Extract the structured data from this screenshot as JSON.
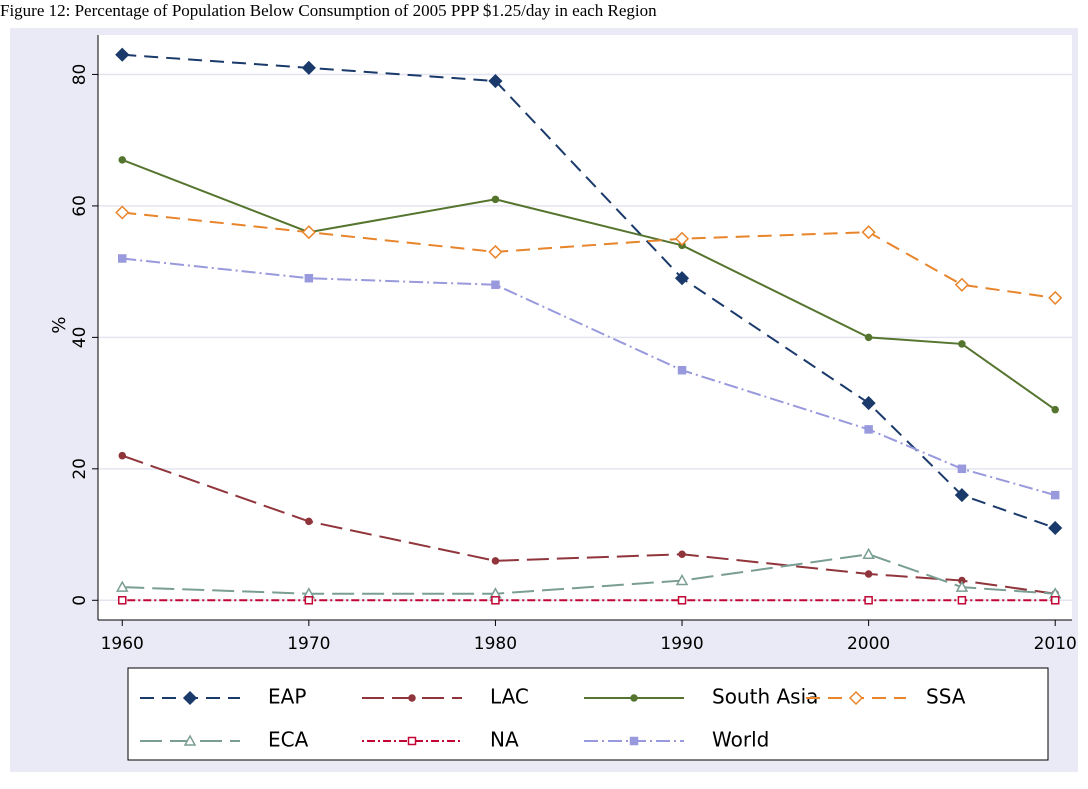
{
  "chart_data": {
    "type": "line",
    "title": "Figure 12: Percentage of Population Below  Consumption of 2005 PPP $1.25/day in each Region",
    "ylabel": "%",
    "x": [
      1960,
      1970,
      1980,
      1990,
      2000,
      2005,
      2010
    ],
    "xlim": [
      1958.7,
      2010.9
    ],
    "xticks": [
      1960,
      1970,
      1980,
      1990,
      2000,
      2010
    ],
    "ylim": [
      -3,
      86
    ],
    "yticks": [
      0,
      20,
      40,
      60,
      80
    ],
    "grid": true,
    "legend": "bottom",
    "series": [
      {
        "name": "EAP",
        "color": "#1a3a6b",
        "line_style": "dash",
        "marker": "diamond",
        "values": [
          83,
          81,
          79,
          49,
          30,
          16,
          11
        ]
      },
      {
        "name": "LAC",
        "color": "#90353b",
        "line_style": "longdash",
        "marker": "dot",
        "values": [
          22,
          12,
          6,
          7,
          4,
          3,
          1
        ]
      },
      {
        "name": "South Asia",
        "color": "#55752f",
        "line_style": "solid",
        "marker": "dot",
        "values": [
          67,
          56,
          61,
          54,
          40,
          39,
          29
        ]
      },
      {
        "name": "SSA",
        "color": "#e8842a",
        "line_style": "dash",
        "marker": "hollow-diamond",
        "values": [
          59,
          56,
          53,
          55,
          56,
          48,
          46
        ]
      },
      {
        "name": "ECA",
        "color": "#7a9e93",
        "line_style": "longdash",
        "marker": "hollow-triangle",
        "values": [
          2,
          1,
          1,
          3,
          7,
          2,
          1
        ]
      },
      {
        "name": "NA",
        "color": "#c10534",
        "line_style": "dotdash",
        "marker": "hollow-square",
        "values": [
          0,
          0,
          0,
          0,
          0,
          0,
          0
        ]
      },
      {
        "name": "World",
        "color": "#9999dd",
        "line_style": "dashdot",
        "marker": "square",
        "values": [
          52,
          49,
          48,
          35,
          26,
          20,
          16
        ]
      }
    ]
  }
}
